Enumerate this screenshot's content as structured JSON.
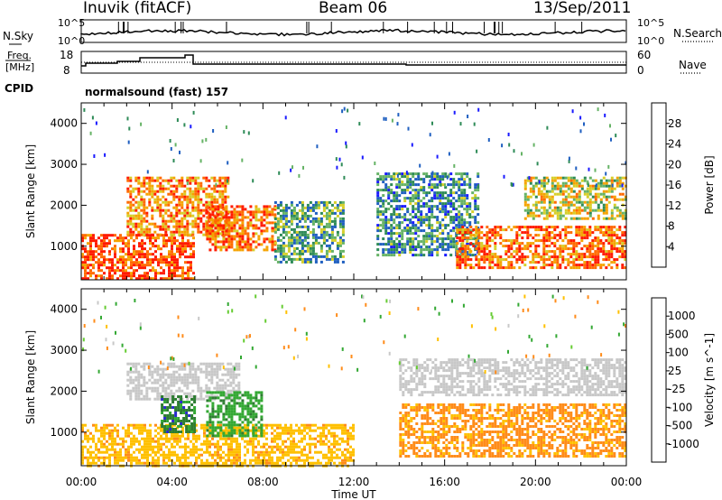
{
  "header": {
    "station": "Inuvik (fitACF)",
    "beam": "Beam 06",
    "date": "13/Sep/2011"
  },
  "panels": {
    "nsky_label": "N.Sky",
    "nsky_top_tick": "10^5",
    "nsky_bottom_tick": "10^0",
    "nsearch_label": "N.Search",
    "nsearch_top_tick": "10^5",
    "nsearch_bottom_tick": "10^0",
    "freq_label_line1": "Freq.",
    "freq_label_line2": "[MHz]",
    "freq_top_tick": "18",
    "freq_bottom_tick": "8",
    "nave_label": "Nave",
    "nave_top_tick": "60",
    "nave_bottom_tick": "0",
    "cpid_label": "CPID",
    "cpid_text": "normalsound (fast) 157"
  },
  "chart_data": [
    {
      "type": "heatmap",
      "title": "Power",
      "ylabel": "Slant Range [km]",
      "colorbar_label": "Power [dB]",
      "ylim": [
        180,
        4500
      ],
      "yticks": [
        "1000",
        "2000",
        "3000",
        "4000"
      ],
      "colorbar": {
        "ticks": [
          "4",
          "8",
          "12",
          "16",
          "20",
          "24",
          "28"
        ],
        "colors": [
          "#1a1aff",
          "#1f5fc0",
          "#2e8b57",
          "#66b366",
          "#d6cf2a",
          "#f5a300",
          "#ff6a00",
          "#ff1a00"
        ]
      },
      "regions": [
        {
          "t0": 0.0,
          "t1": 5.0,
          "r0": 200,
          "r1": 1300,
          "level": 28
        },
        {
          "t0": 2.0,
          "t1": 6.5,
          "r0": 1300,
          "r1": 2700,
          "level": 24
        },
        {
          "t0": 5.5,
          "t1": 8.5,
          "r0": 900,
          "r1": 2000,
          "level": 26
        },
        {
          "t0": 8.5,
          "t1": 11.5,
          "r0": 600,
          "r1": 2100,
          "level": 12
        },
        {
          "t0": 13.0,
          "t1": 17.5,
          "r0": 800,
          "r1": 2800,
          "level": 10
        },
        {
          "t0": 16.5,
          "t1": 24.0,
          "r0": 500,
          "r1": 1500,
          "level": 26
        },
        {
          "t0": 19.5,
          "t1": 24.0,
          "r0": 1700,
          "r1": 2700,
          "level": 18
        }
      ]
    },
    {
      "type": "heatmap",
      "title": "Velocity",
      "xlabel": "Time UT",
      "ylabel": "Slant Range [km]",
      "colorbar_label": "Velocity [m s^-1]",
      "ylim": [
        180,
        4500
      ],
      "yticks": [
        "1000",
        "2000",
        "3000",
        "4000"
      ],
      "xticks": [
        "00:00",
        "04:00",
        "08:00",
        "12:00",
        "16:00",
        "20:00",
        "00:00"
      ],
      "colorbar": {
        "ticks": [
          "1000",
          "500",
          "100",
          "25",
          "-25",
          "-100",
          "-500",
          "-1000"
        ],
        "colors": [
          "#2a2acc",
          "#2e7d32",
          "#33a833",
          "#66cc33",
          "#c8c8c8",
          "#ffc000",
          "#ff8c1a",
          "#ff5a00",
          "#ff1a00"
        ]
      },
      "regions": [
        {
          "t0": 0.0,
          "t1": 12.0,
          "r0": 200,
          "r1": 1200,
          "vel": -100
        },
        {
          "t0": 2.0,
          "t1": 7.0,
          "r0": 1800,
          "r1": 2700,
          "vel": 0
        },
        {
          "t0": 3.5,
          "t1": 5.0,
          "r0": 1000,
          "r1": 1900,
          "vel": 800
        },
        {
          "t0": 5.5,
          "t1": 8.0,
          "r0": 900,
          "r1": 2000,
          "vel": 300
        },
        {
          "t0": 14.0,
          "t1": 24.0,
          "r0": 400,
          "r1": 1700,
          "vel": -200
        },
        {
          "t0": 14.0,
          "t1": 24.0,
          "r0": 1900,
          "r1": 2800,
          "vel": 0
        }
      ]
    }
  ]
}
